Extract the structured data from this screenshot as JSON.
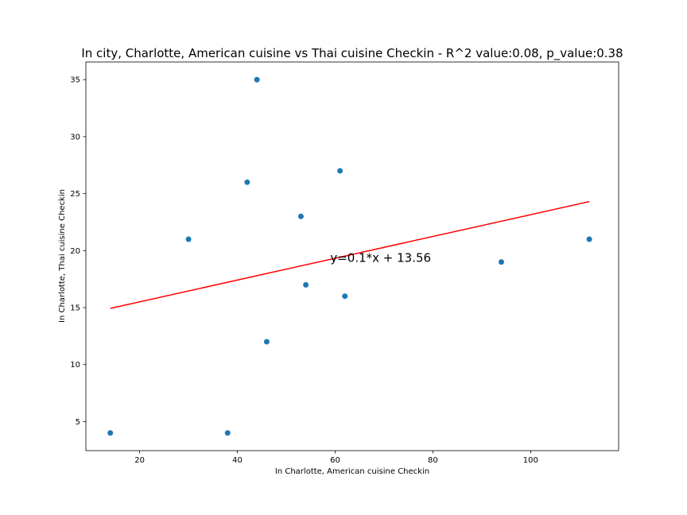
{
  "chart_data": {
    "type": "scatter",
    "title": "In city, Charlotte, American cuisine vs Thai cuisine Checkin - R^2 value:0.08, p_value:0.38",
    "xlabel": "In Charlotte, American cuisine Checkin",
    "ylabel": "In Charlotte, Thai cuisine Checkin",
    "xlim": [
      9,
      118
    ],
    "ylim": [
      2.45,
      36.55
    ],
    "xticks": [
      20,
      40,
      60,
      80,
      100
    ],
    "yticks": [
      5,
      10,
      15,
      20,
      25,
      30,
      35
    ],
    "grid": false,
    "series": [
      {
        "points": [
          {
            "x": 14,
            "y": 4
          },
          {
            "x": 30,
            "y": 21
          },
          {
            "x": 38,
            "y": 4
          },
          {
            "x": 42,
            "y": 26
          },
          {
            "x": 44,
            "y": 35
          },
          {
            "x": 46,
            "y": 12
          },
          {
            "x": 53,
            "y": 23
          },
          {
            "x": 54,
            "y": 17
          },
          {
            "x": 61,
            "y": 27
          },
          {
            "x": 62,
            "y": 16
          },
          {
            "x": 94,
            "y": 19
          },
          {
            "x": 112,
            "y": 21
          }
        ]
      }
    ],
    "regression": {
      "slope": 0.1,
      "intercept": 13.56,
      "x_range": [
        14,
        112
      ],
      "y_range": [
        14.93,
        24.3
      ],
      "label": "y=0.1*x + 13.56",
      "label_anchor": {
        "x": 59,
        "y": 19
      }
    },
    "colors": {
      "points": "#1f77b4",
      "regression": "#ff0000"
    }
  }
}
